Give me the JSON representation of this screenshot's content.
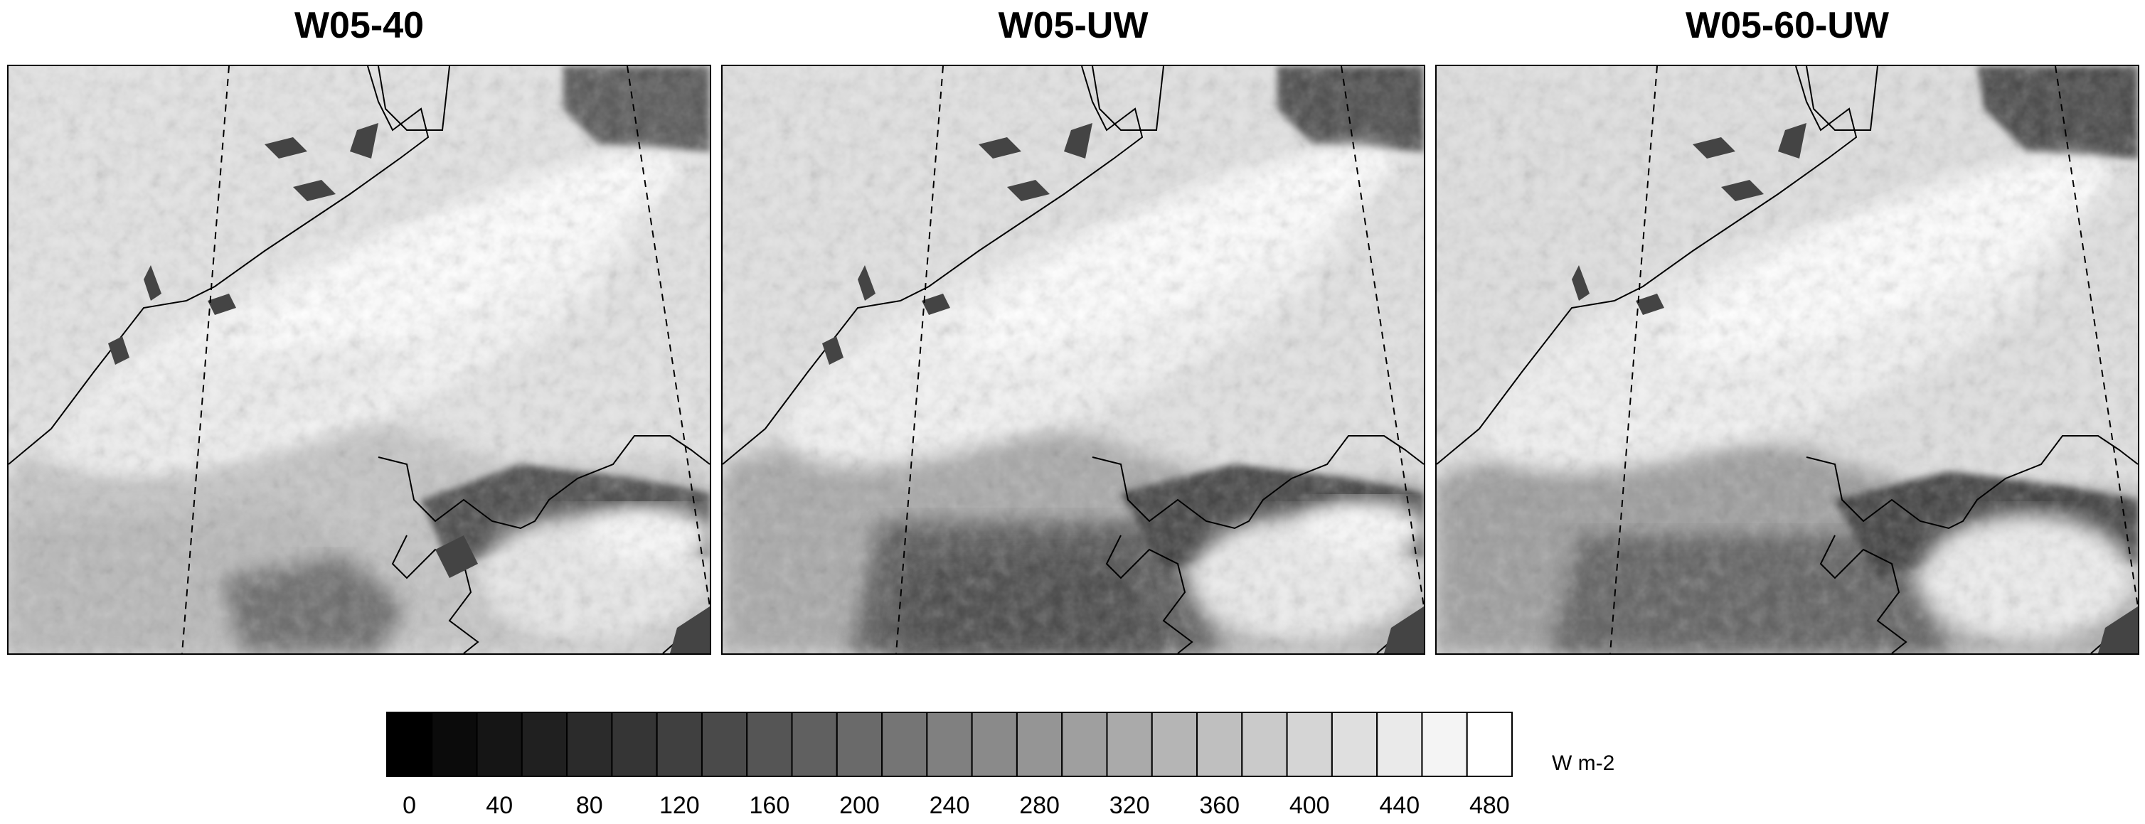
{
  "panels": [
    {
      "title": "W05-40"
    },
    {
      "title": "W05-UW"
    },
    {
      "title": "W05-60-UW"
    }
  ],
  "colorbar": {
    "units": "W m-2",
    "levels": [
      0,
      20,
      40,
      60,
      80,
      100,
      120,
      140,
      160,
      180,
      200,
      220,
      240,
      260,
      280,
      300,
      320,
      340,
      360,
      380,
      400,
      420,
      440,
      460,
      480,
      500
    ],
    "tick_labels": [
      "0",
      "40",
      "80",
      "120",
      "160",
      "200",
      "240",
      "280",
      "320",
      "360",
      "400",
      "440",
      "480"
    ],
    "color_low": "#000000",
    "color_high": "#ffffff"
  }
}
